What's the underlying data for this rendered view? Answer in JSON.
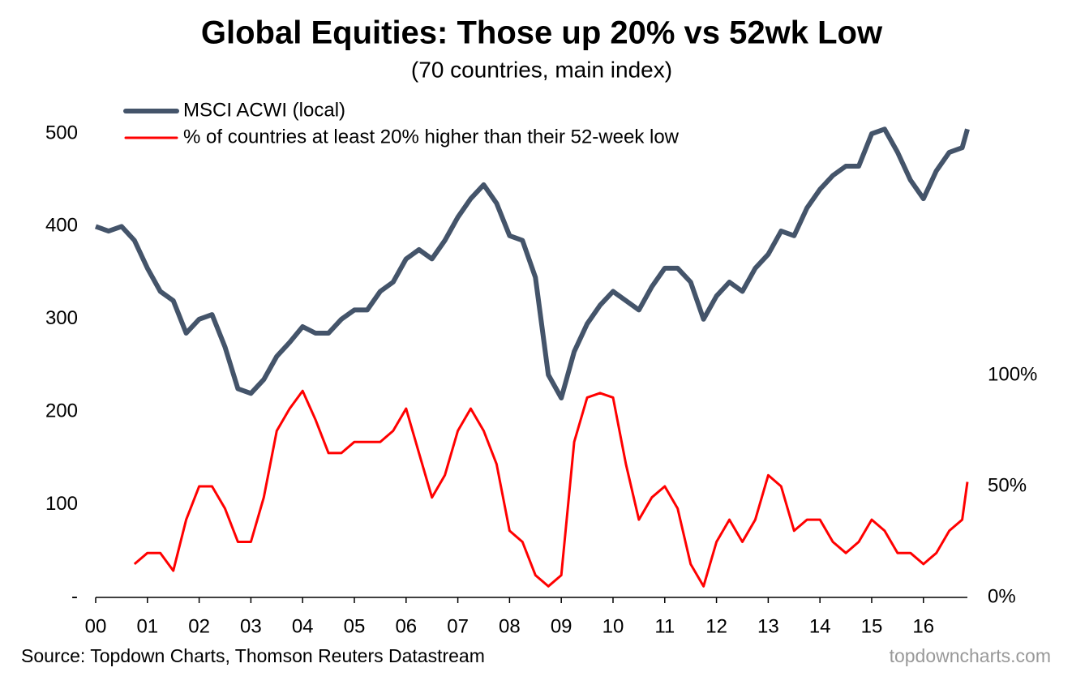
{
  "chart_data": {
    "type": "line",
    "title": "Global Equities: Those up 20% vs 52wk Low",
    "subtitle": "(70 countries, main index)",
    "source": "Source: Topdown Charts, Thomson Reuters Datastream",
    "watermark": "topdowncharts.com",
    "legend": "top-left",
    "x": [
      2000,
      2000.25,
      2000.5,
      2000.75,
      2001,
      2001.25,
      2001.5,
      2001.75,
      2002,
      2002.25,
      2002.5,
      2002.75,
      2003,
      2003.25,
      2003.5,
      2003.75,
      2004,
      2004.25,
      2004.5,
      2004.75,
      2005,
      2005.25,
      2005.5,
      2005.75,
      2006,
      2006.25,
      2006.5,
      2006.75,
      2007,
      2007.25,
      2007.5,
      2007.75,
      2008,
      2008.25,
      2008.5,
      2008.75,
      2009,
      2009.25,
      2009.5,
      2009.75,
      2010,
      2010.25,
      2010.5,
      2010.75,
      2011,
      2011.25,
      2011.5,
      2011.75,
      2012,
      2012.25,
      2012.5,
      2012.75,
      2013,
      2013.25,
      2013.5,
      2013.75,
      2014,
      2014.25,
      2014.5,
      2014.75,
      2015,
      2015.25,
      2015.5,
      2015.75,
      2016,
      2016.25,
      2016.5,
      2016.75,
      2016.85
    ],
    "series": [
      {
        "name": "MSCI ACWI (local)",
        "color": "#44546a",
        "axis": "y",
        "values": [
          400,
          395,
          400,
          385,
          355,
          330,
          320,
          285,
          300,
          305,
          270,
          225,
          220,
          235,
          260,
          275,
          292,
          285,
          285,
          300,
          310,
          310,
          330,
          340,
          365,
          375,
          365,
          385,
          410,
          430,
          445,
          425,
          390,
          385,
          345,
          240,
          215,
          265,
          295,
          315,
          330,
          320,
          310,
          335,
          355,
          355,
          340,
          300,
          325,
          340,
          330,
          355,
          370,
          395,
          390,
          420,
          440,
          455,
          465,
          465,
          500,
          505,
          480,
          450,
          430,
          460,
          480,
          485,
          505
        ]
      },
      {
        "name": "% of countries at least 20% higher than their 52-week low",
        "color": "#ff0000",
        "axis": "y2",
        "values": [
          null,
          null,
          null,
          15,
          20,
          20,
          12,
          35,
          50,
          50,
          40,
          25,
          25,
          45,
          75,
          85,
          93,
          80,
          65,
          65,
          70,
          70,
          70,
          75,
          85,
          65,
          45,
          55,
          75,
          85,
          75,
          60,
          30,
          25,
          10,
          5,
          10,
          70,
          90,
          92,
          90,
          60,
          35,
          45,
          50,
          40,
          15,
          5,
          25,
          35,
          25,
          35,
          55,
          50,
          30,
          35,
          35,
          25,
          20,
          25,
          35,
          30,
          20,
          20,
          15,
          20,
          30,
          35,
          52
        ]
      }
    ],
    "xlim": [
      2000,
      2016.85
    ],
    "xticks": [
      {
        "value": 2000,
        "label": "00"
      },
      {
        "value": 2001,
        "label": "01"
      },
      {
        "value": 2002,
        "label": "02"
      },
      {
        "value": 2003,
        "label": "03"
      },
      {
        "value": 2004,
        "label": "04"
      },
      {
        "value": 2005,
        "label": "05"
      },
      {
        "value": 2006,
        "label": "06"
      },
      {
        "value": 2007,
        "label": "07"
      },
      {
        "value": 2008,
        "label": "08"
      },
      {
        "value": 2009,
        "label": "09"
      },
      {
        "value": 2010,
        "label": "10"
      },
      {
        "value": 2011,
        "label": "11"
      },
      {
        "value": 2012,
        "label": "12"
      },
      {
        "value": 2013,
        "label": "13"
      },
      {
        "value": 2014,
        "label": "14"
      },
      {
        "value": 2015,
        "label": "15"
      },
      {
        "value": 2016,
        "label": "16"
      }
    ],
    "ylim": [
      0,
      500
    ],
    "yticks": [
      {
        "value": 0,
        "label": "-"
      },
      100,
      200,
      300,
      400,
      500
    ],
    "y2lim": [
      0,
      100
    ],
    "y2ticks": [
      {
        "value": 0,
        "label": "0%"
      },
      {
        "value": 50,
        "label": "50%"
      },
      {
        "value": 100,
        "label": "100%"
      }
    ]
  }
}
